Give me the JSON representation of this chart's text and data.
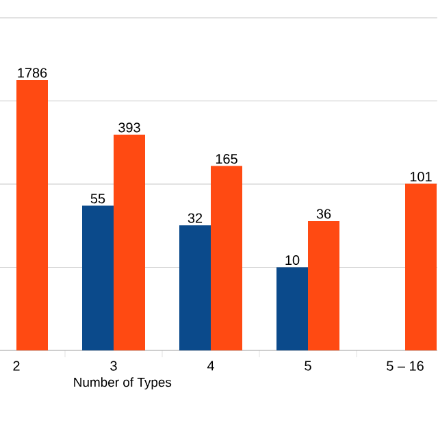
{
  "chart_data": {
    "type": "bar",
    "xlabel": "Number of Types",
    "categories": [
      "2",
      "3",
      "4",
      "5",
      "5 – 16"
    ],
    "series": [
      {
        "color": "#0b4a8b",
        "values": [
          null,
          55,
          32,
          10,
          null
        ]
      },
      {
        "color": "#ff4a12",
        "values": [
          1786,
          393,
          165,
          36,
          101
        ]
      }
    ],
    "log": "y",
    "ylim": [
      1,
      10000
    ],
    "tick_labels": "x",
    "grid": "y",
    "data_labels": true,
    "legend": false
  }
}
